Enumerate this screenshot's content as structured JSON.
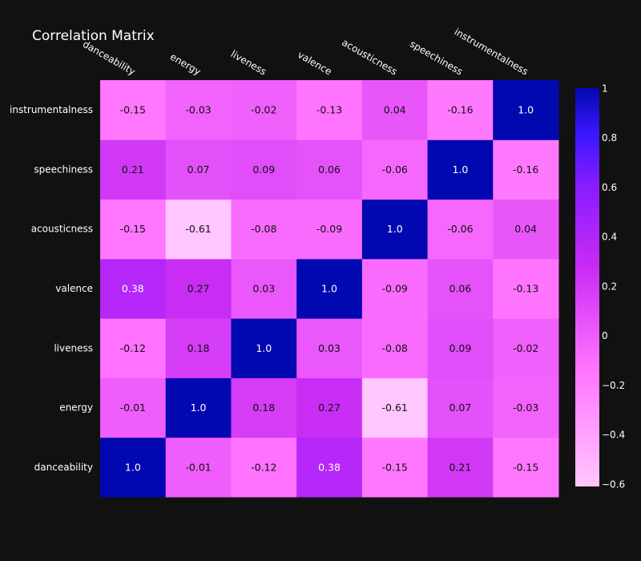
{
  "chart_data": {
    "type": "heatmap",
    "title": "Correlation Matrix",
    "x_labels": [
      "danceability",
      "energy",
      "liveness",
      "valence",
      "acousticness",
      "speechiness",
      "instrumentalness"
    ],
    "y_labels": [
      "danceability",
      "energy",
      "liveness",
      "valence",
      "acousticness",
      "speechiness",
      "instrumentalness"
    ],
    "z": [
      [
        1.0,
        -0.01,
        -0.12,
        0.38,
        -0.15,
        0.21,
        -0.15
      ],
      [
        -0.01,
        1.0,
        0.18,
        0.27,
        -0.61,
        0.07,
        -0.03
      ],
      [
        -0.12,
        0.18,
        1.0,
        0.03,
        -0.08,
        0.09,
        -0.02
      ],
      [
        0.38,
        0.27,
        0.03,
        1.0,
        -0.09,
        0.06,
        -0.13
      ],
      [
        -0.15,
        -0.61,
        -0.08,
        -0.09,
        1.0,
        -0.06,
        0.04
      ],
      [
        0.21,
        0.07,
        0.09,
        0.06,
        -0.06,
        1.0,
        -0.16
      ],
      [
        -0.15,
        -0.03,
        -0.02,
        -0.13,
        0.04,
        -0.16,
        1.0
      ]
    ],
    "text": [
      [
        "1.0",
        "-0.01",
        "-0.12",
        "0.38",
        "-0.15",
        "0.21",
        "-0.15"
      ],
      [
        "-0.01",
        "1.0",
        "0.18",
        "0.27",
        "-0.61",
        "0.07",
        "-0.03"
      ],
      [
        "-0.12",
        "0.18",
        "1.0",
        "0.03",
        "-0.08",
        "0.09",
        "-0.02"
      ],
      [
        "0.38",
        "0.27",
        "0.03",
        "1.0",
        "-0.09",
        "0.06",
        "-0.13"
      ],
      [
        "-0.15",
        "-0.61",
        "-0.08",
        "-0.09",
        "1.0",
        "-0.06",
        "0.04"
      ],
      [
        "0.21",
        "0.07",
        "0.09",
        "0.06",
        "-0.06",
        "1.0",
        "-0.16"
      ],
      [
        "-0.15",
        "-0.03",
        "-0.02",
        "-0.13",
        "0.04",
        "-0.16",
        "1.0"
      ]
    ],
    "colorscale": [
      [
        0,
        "#ffc6ff"
      ],
      [
        0.3,
        "#ff73ff"
      ],
      [
        0.55,
        "#c82cf4"
      ],
      [
        0.75,
        "#8a1cff"
      ],
      [
        0.88,
        "#3d18ff"
      ],
      [
        1,
        "#0208b0"
      ]
    ],
    "zmin": -0.61,
    "zmax": 1.0,
    "colorbar_ticks": [
      1,
      0.8,
      0.6,
      0.4,
      0.2,
      0,
      -0.2,
      -0.4,
      -0.6
    ],
    "colorbar_tick_labels": [
      "1",
      "0.8",
      "0.6",
      "0.4",
      "0.2",
      "0",
      "−0.2",
      "−0.4",
      "−0.6"
    ],
    "x_axis_side": "top",
    "background": "#111111"
  }
}
